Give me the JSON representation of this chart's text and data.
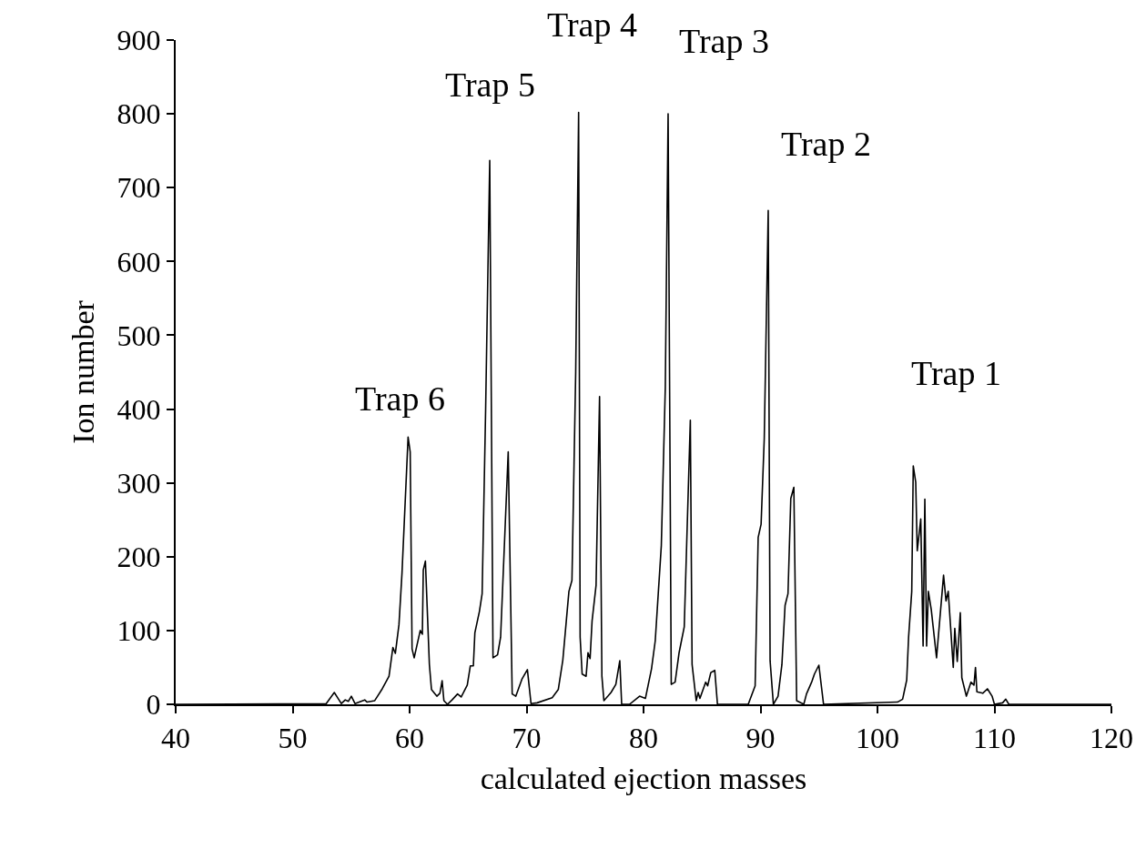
{
  "chart_data": {
    "type": "line",
    "xlabel": "calculated ejection masses",
    "ylabel": "Ion number",
    "x": [
      40,
      52.87,
      53.56,
      54.16,
      54.5,
      54.76,
      55.02,
      55.33,
      56.16,
      56.37,
      57.02,
      57.66,
      58.24,
      58.57,
      58.78,
      59.09,
      59.35,
      59.87,
      60.05,
      60.21,
      60.39,
      60.91,
      61.09,
      61.17,
      61.35,
      61.69,
      61.87,
      62.33,
      62.59,
      62.78,
      62.93,
      63.24,
      63.63,
      64.1,
      64.41,
      64.93,
      65.19,
      65.45,
      65.58,
      65.97,
      66.2,
      66.5,
      66.85,
      67.13,
      67.52,
      67.78,
      68.43,
      68.77,
      69.08,
      69.6,
      70.07,
      70.38,
      70.9,
      72.19,
      72.71,
      73.1,
      73.62,
      73.88,
      74.2,
      74.45,
      74.58,
      74.75,
      75.09,
      75.25,
      75.43,
      75.6,
      75.94,
      76.24,
      76.44,
      76.61,
      76.95,
      77.22,
      77.63,
      77.97,
      78.13,
      78.8,
      79.66,
      80.16,
      80.68,
      81.0,
      81.52,
      81.86,
      82.1,
      82.37,
      82.7,
      83.04,
      83.48,
      84.0,
      84.15,
      84.5,
      84.67,
      84.82,
      85.31,
      85.48,
      85.75,
      86.09,
      86.32,
      88.95,
      89.54,
      89.8,
      90.05,
      90.32,
      90.66,
      90.82,
      91.1,
      91.5,
      91.83,
      92.1,
      92.35,
      92.59,
      92.85,
      93.09,
      93.7,
      93.93,
      94.37,
      94.61,
      94.99,
      95.39,
      101.71,
      102.15,
      102.5,
      102.66,
      102.93,
      103.06,
      103.27,
      103.4,
      103.7,
      103.9,
      104.05,
      104.2,
      104.35,
      104.6,
      105.05,
      105.65,
      105.86,
      106.05,
      106.48,
      106.61,
      106.82,
      107.08,
      107.21,
      107.6,
      107.99,
      108.25,
      108.38,
      108.5,
      109.0,
      109.4,
      109.8,
      110.0,
      110.7,
      110.97,
      111.23,
      120
    ],
    "series": [
      {
        "color": "#000000",
        "values": [
          0,
          1,
          16,
          1,
          6,
          4,
          11,
          1,
          6,
          3,
          5,
          21,
          38,
          77,
          69,
          108,
          178,
          362,
          342,
          75,
          63,
          100,
          95,
          182,
          194,
          54,
          20,
          11,
          15,
          32,
          5,
          0,
          6,
          14,
          10,
          26,
          52,
          52,
          97,
          126,
          150,
          400,
          737,
          63,
          67,
          91,
          342,
          14,
          11,
          34,
          47,
          1,
          2,
          9,
          20,
          60,
          153,
          168,
          450,
          802,
          91,
          41,
          38,
          70,
          62,
          113,
          161,
          417,
          38,
          5,
          11,
          16,
          27,
          59,
          0,
          0,
          11,
          8,
          48,
          86,
          215,
          429,
          800,
          27,
          30,
          70,
          105,
          385,
          54,
          5,
          16,
          8,
          30,
          25,
          43,
          46,
          0,
          0,
          25,
          226,
          244,
          360,
          669,
          59,
          0,
          11,
          54,
          134,
          150,
          279,
          294,
          5,
          0,
          14,
          30,
          41,
          53,
          0,
          3,
          7,
          33,
          91,
          153,
          323,
          301,
          208,
          251,
          79,
          278,
          79,
          153,
          128,
          63,
          175,
          140,
          153,
          50,
          103,
          58,
          124,
          36,
          11,
          30,
          26,
          50,
          17,
          15,
          21,
          11,
          0,
          2,
          7,
          0,
          0
        ]
      }
    ],
    "xlim": [
      40,
      120
    ],
    "xticks": [
      40,
      50,
      60,
      70,
      80,
      90,
      100,
      110,
      120
    ],
    "ylim": [
      0,
      900
    ],
    "yticks": [
      0,
      100,
      200,
      300,
      400,
      500,
      600,
      700,
      800,
      900
    ],
    "marker": "none",
    "line_style": "solid",
    "annotations": [
      "Trap 6",
      "Trap 5",
      "Trap 4",
      "Trap 3",
      "Trap 2",
      "Trap 1"
    ]
  }
}
